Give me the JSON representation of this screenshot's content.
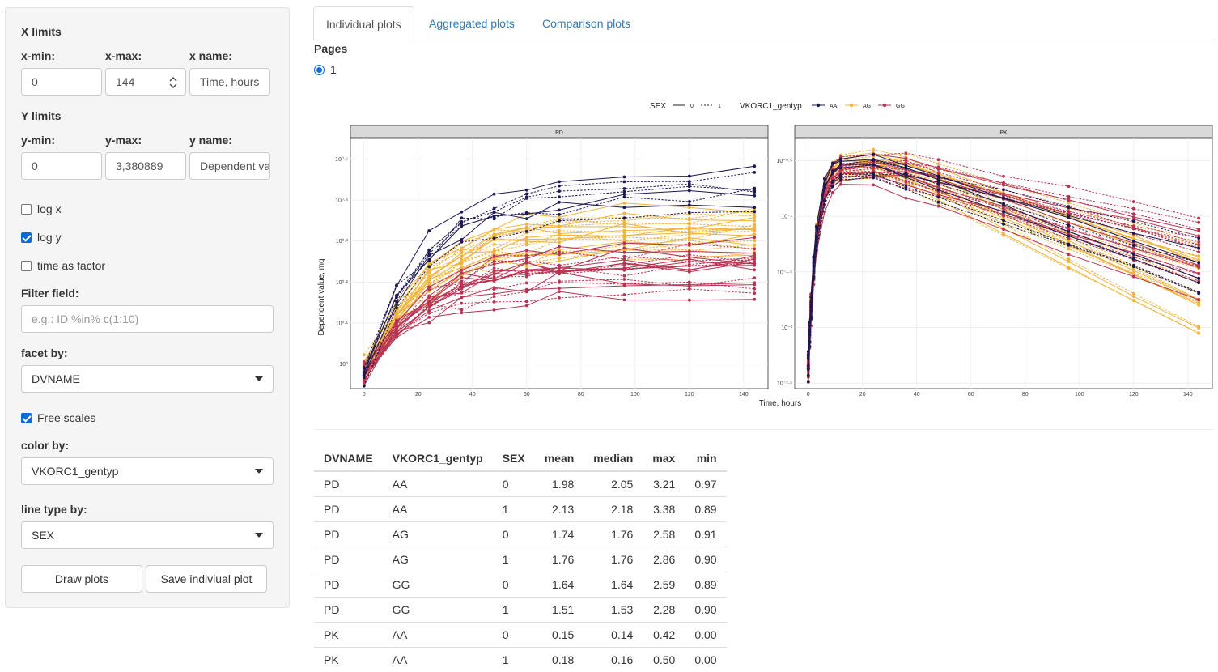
{
  "sidebar": {
    "x_limits_title": "X limits",
    "xmin_label": "x-min:",
    "xmin_value": "0",
    "xmax_label": "x-max:",
    "xmax_value": "144",
    "xname_label": "x name:",
    "xname_value": "Time, hours",
    "y_limits_title": "Y limits",
    "ymin_label": "y-min:",
    "ymin_value": "0",
    "ymax_label": "y-max:",
    "ymax_value": "3,380889",
    "yname_label": "y name:",
    "yname_value": "Dependent value, mg",
    "log_x_label": "log x",
    "log_x_checked": false,
    "log_y_label": "log y",
    "log_y_checked": true,
    "time_factor_label": "time as factor",
    "time_factor_checked": false,
    "filter_label": "Filter field:",
    "filter_placeholder": "e.g.: ID %in% c(1:10)",
    "facet_label": "facet by:",
    "facet_value": "DVNAME",
    "free_scales_label": "Free scales",
    "free_scales_checked": true,
    "color_label": "color by:",
    "color_value": "VKORC1_gentyp",
    "linetype_label": "line type by:",
    "linetype_value": "SEX",
    "draw_button": "Draw plots",
    "save_button": "Save indiviual plot"
  },
  "tabs": [
    "Individual plots",
    "Aggregated plots",
    "Comparison plots"
  ],
  "active_tab": 0,
  "pages": {
    "label": "Pages",
    "option": "1"
  },
  "chart_data": {
    "type": "line",
    "legend": {
      "linetype_title": "SEX",
      "linetype_entries": [
        "0",
        "1"
      ],
      "color_title": "VKORC1_gentyp",
      "color_entries": [
        "AA",
        "AG",
        "GG"
      ],
      "placement": "top"
    },
    "colors": {
      "AA": "#1c1850",
      "AG": "#f0b43c",
      "GG": "#b83252"
    },
    "xlabel": "Time, hours",
    "ylabel": "Dependent value, mg",
    "grid": true,
    "facets": [
      {
        "name": "PD",
        "x_ticks": [
          0,
          20,
          40,
          60,
          80,
          100,
          120,
          140
        ],
        "xlim": [
          -5,
          149
        ],
        "y_scale": "log10",
        "y_ticks": [
          0,
          0.1,
          0.2,
          0.3,
          0.4,
          0.5
        ],
        "y_tick_labels": [
          "10⁰",
          "10⁰·¹",
          "10⁰·²",
          "10⁰·³",
          "10⁰·⁴",
          "10⁰·⁵"
        ],
        "ylim_log10": [
          -0.06,
          0.55
        ]
      },
      {
        "name": "PK",
        "x_ticks": [
          0,
          20,
          40,
          60,
          80,
          100,
          120,
          140
        ],
        "xlim": [
          -5,
          149
        ],
        "y_scale": "log10",
        "y_ticks": [
          -0.5,
          -1,
          -1.5,
          -2,
          -2.5
        ],
        "y_tick_labels": [
          "10⁻⁰·⁵",
          "10⁻¹",
          "10⁻¹·⁵",
          "10⁻²",
          "10⁻²·⁵"
        ],
        "ylim_log10": [
          -2.55,
          -0.3
        ]
      }
    ],
    "time_points": [
      0,
      12,
      24,
      36,
      48,
      60,
      72,
      96,
      120,
      144
    ],
    "pk_time_points": [
      0,
      0.5,
      1,
      2,
      3,
      6,
      9,
      12,
      24,
      36,
      48,
      72,
      96,
      120,
      144
    ],
    "subject_series_note": "individual subject profiles colored by VKORC1_gentyp, line type by SEX"
  },
  "table": {
    "headers": [
      "DVNAME",
      "VKORC1_gentyp",
      "SEX",
      "mean",
      "median",
      "max",
      "min"
    ],
    "rows": [
      [
        "PD",
        "AA",
        "0",
        "1.98",
        "2.05",
        "3.21",
        "0.97"
      ],
      [
        "PD",
        "AA",
        "1",
        "2.13",
        "2.18",
        "3.38",
        "0.89"
      ],
      [
        "PD",
        "AG",
        "0",
        "1.74",
        "1.76",
        "2.58",
        "0.91"
      ],
      [
        "PD",
        "AG",
        "1",
        "1.76",
        "1.76",
        "2.86",
        "0.90"
      ],
      [
        "PD",
        "GG",
        "0",
        "1.64",
        "1.64",
        "2.59",
        "0.89"
      ],
      [
        "PD",
        "GG",
        "1",
        "1.51",
        "1.53",
        "2.28",
        "0.90"
      ],
      [
        "PK",
        "AA",
        "0",
        "0.15",
        "0.14",
        "0.42",
        "0.00"
      ],
      [
        "PK",
        "AA",
        "1",
        "0.18",
        "0.16",
        "0.50",
        "0.00"
      ]
    ]
  }
}
